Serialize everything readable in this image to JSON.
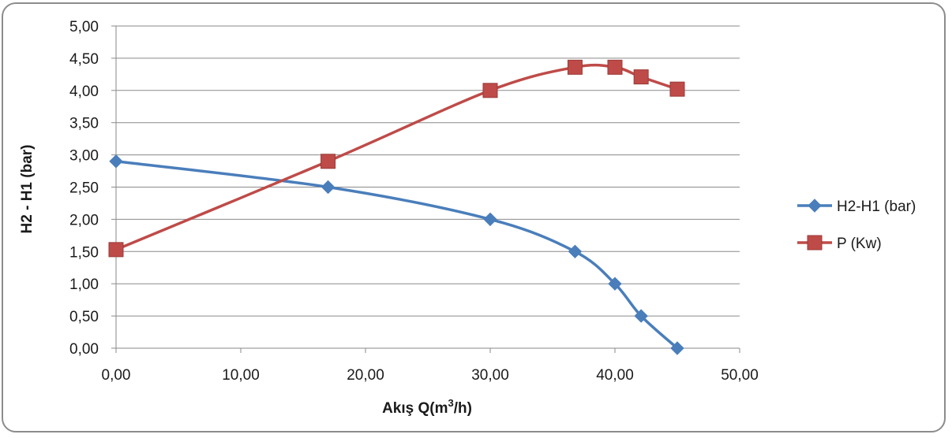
{
  "chart_data": {
    "type": "line",
    "title": "",
    "xlabel": "Akış Q(m³/h)",
    "xlabel_parts": {
      "before": "Akış Q(m",
      "sup": "3",
      "after": "/h)"
    },
    "ylabel": "H2 - H1 (bar)",
    "xlim": [
      0,
      50
    ],
    "ylim": [
      0,
      5
    ],
    "x_ticks": [
      "0,00",
      "10,00",
      "20,00",
      "30,00",
      "40,00",
      "50,00"
    ],
    "y_ticks": [
      "0,00",
      "0,50",
      "1,00",
      "1,50",
      "2,00",
      "2,50",
      "3,00",
      "3,50",
      "4,00",
      "4,50",
      "5,00"
    ],
    "grid": "horizontal",
    "legend_position": "right",
    "smooth": true,
    "series": [
      {
        "name": "H2-H1 (bar)",
        "color": "#4a7ebb",
        "marker": "diamond",
        "x": [
          0,
          17,
          30,
          36.8,
          40,
          42.1,
          45
        ],
        "y": [
          2.9,
          2.5,
          2.0,
          1.5,
          1.0,
          0.5,
          0.0
        ]
      },
      {
        "name": "P (Kw)",
        "color": "#be4b48",
        "marker": "square",
        "x": [
          0,
          17,
          30,
          36.8,
          40,
          42.1,
          45
        ],
        "y": [
          1.53,
          2.9,
          4.0,
          4.36,
          4.36,
          4.21,
          4.02
        ]
      }
    ]
  }
}
